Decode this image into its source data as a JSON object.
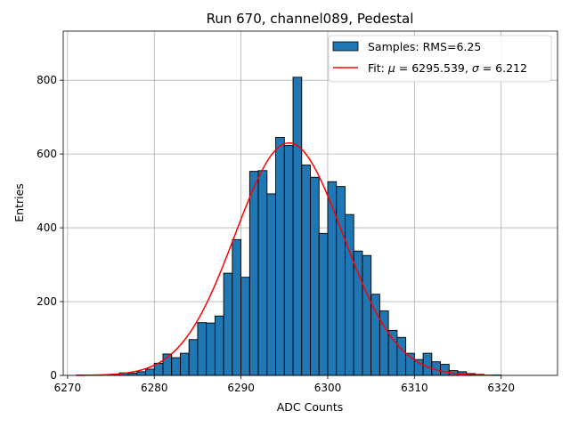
{
  "chart_data": {
    "type": "bar",
    "title": "Run 670, channel089, Pedestal",
    "xlabel": "ADC Counts",
    "ylabel": "Entries",
    "xlim": [
      6269.5,
      6326.5
    ],
    "ylim": [
      0,
      933
    ],
    "x_ticks": [
      6270,
      6280,
      6290,
      6300,
      6310,
      6320
    ],
    "y_ticks": [
      0,
      200,
      400,
      600,
      800
    ],
    "grid": true,
    "legend_position": "top-right",
    "bin_width": 1,
    "histogram": {
      "name": "Samples: RMS=6.25",
      "color": "#1f77b4",
      "edge_color": "#000000",
      "bin_edges_start": 6270,
      "counts": [
        0,
        1,
        0,
        0,
        0,
        2,
        7,
        6,
        10,
        17,
        33,
        58,
        48,
        60,
        97,
        143,
        142,
        161,
        277,
        368,
        266,
        553,
        555,
        492,
        645,
        623,
        808,
        570,
        537,
        385,
        525,
        512,
        436,
        337,
        325,
        220,
        175,
        122,
        103,
        60,
        43,
        60,
        37,
        30,
        13,
        10,
        5,
        3,
        1,
        1,
        0,
        0,
        0
      ]
    },
    "fit": {
      "name": "Fit: μ = 6295.539, σ = 6.212",
      "legend_prefix": "Fit: ",
      "mu_symbol": "μ",
      "mu_text": " = 6295.539, ",
      "sigma_symbol": "σ",
      "sigma_text": " = 6.212",
      "color": "#ff0000",
      "mu": 6295.539,
      "sigma": 6.212,
      "amplitude": 630,
      "x_range": [
        6271,
        6319
      ]
    }
  }
}
